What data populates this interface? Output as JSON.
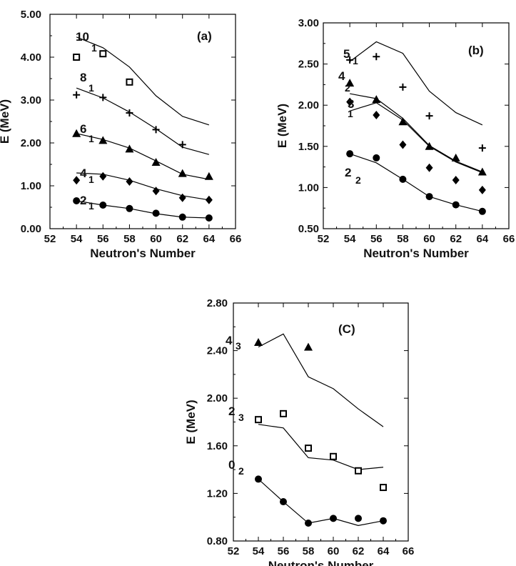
{
  "chart_data": [
    {
      "id": "a",
      "type": "scatter",
      "panel_label": "(a)",
      "xlabel": "Neutron's Number",
      "ylabel": "E (MeV)",
      "xlim": [
        52,
        66
      ],
      "ylim": [
        0,
        5
      ],
      "xticks": [
        "52",
        "54",
        "56",
        "58",
        "60",
        "62",
        "64",
        "66"
      ],
      "yticks": [
        "0.00",
        "1.00",
        "2.00",
        "3.00",
        "4.00",
        "5.00"
      ],
      "series": [
        {
          "state": "2",
          "sub": "1",
          "marker": "circle",
          "x": [
            54,
            56,
            58,
            60,
            62,
            64
          ],
          "points": [
            0.65,
            0.55,
            0.47,
            0.36,
            0.27,
            0.25
          ],
          "line": [
            0.65,
            0.55,
            0.47,
            0.35,
            0.27,
            0.25
          ]
        },
        {
          "state": "4",
          "sub": "1",
          "marker": "diamond",
          "x": [
            54,
            56,
            58,
            60,
            62,
            64
          ],
          "points": [
            1.13,
            1.22,
            1.1,
            0.88,
            0.72,
            0.67
          ],
          "line": [
            1.3,
            1.27,
            1.13,
            0.93,
            0.77,
            0.67
          ]
        },
        {
          "state": "6",
          "sub": "1",
          "marker": "triangle",
          "x": [
            54,
            56,
            58,
            60,
            62,
            64
          ],
          "points": [
            2.22,
            2.06,
            1.86,
            1.55,
            1.29,
            1.22
          ],
          "line": [
            2.22,
            2.08,
            1.88,
            1.58,
            1.27,
            1.15
          ]
        },
        {
          "state": "8",
          "sub": "1",
          "marker": "plus",
          "x": [
            54,
            56,
            58,
            60,
            62,
            64
          ],
          "points": [
            3.12,
            3.06,
            2.7,
            2.31,
            1.96,
            null
          ],
          "line": [
            3.28,
            3.05,
            2.72,
            2.33,
            1.9,
            1.73
          ]
        },
        {
          "state": "10",
          "sub": "1",
          "marker": "square",
          "x": [
            54,
            56,
            58,
            60,
            62,
            64
          ],
          "points": [
            4.0,
            4.08,
            3.42,
            null,
            null,
            null
          ],
          "line": [
            4.47,
            4.22,
            3.77,
            3.1,
            2.62,
            2.42
          ]
        }
      ]
    },
    {
      "id": "b",
      "type": "scatter",
      "panel_label": "(b)",
      "xlabel": "Neutron's Number",
      "ylabel": "E (MeV)",
      "xlim": [
        52,
        66
      ],
      "ylim": [
        0.5,
        3.0
      ],
      "xticks": [
        "52",
        "54",
        "56",
        "58",
        "60",
        "62",
        "64",
        "66"
      ],
      "yticks": [
        "0.50",
        "1.00",
        "1.50",
        "2.00",
        "2.50",
        "3.00"
      ],
      "series": [
        {
          "state": "2",
          "sub": "2",
          "marker": "circle",
          "x": [
            54,
            56,
            58,
            60,
            62,
            64
          ],
          "points": [
            1.41,
            1.36,
            1.1,
            0.89,
            0.79,
            0.71
          ],
          "line": [
            1.41,
            1.3,
            1.1,
            0.89,
            0.79,
            0.71
          ]
        },
        {
          "state": "3",
          "sub": "1",
          "marker": "diamond",
          "x": [
            54,
            56,
            58,
            60,
            62,
            64
          ],
          "points": [
            2.04,
            1.88,
            1.52,
            1.24,
            1.09,
            0.97
          ],
          "line": [
            1.93,
            2.03,
            1.82,
            1.5,
            1.31,
            1.18
          ]
        },
        {
          "state": "4",
          "sub": "2",
          "marker": "triangle",
          "x": [
            54,
            56,
            58,
            60,
            62,
            64
          ],
          "points": [
            2.27,
            2.07,
            1.8,
            1.5,
            1.36,
            1.19
          ],
          "line": [
            2.14,
            2.08,
            1.84,
            1.51,
            1.32,
            1.19
          ]
        },
        {
          "state": "5",
          "sub": "1",
          "marker": "plus",
          "x": [
            54,
            56,
            58,
            60,
            62,
            64
          ],
          "points": [
            2.55,
            2.59,
            2.22,
            1.87,
            null,
            1.48
          ],
          "line": [
            2.53,
            2.77,
            2.63,
            2.17,
            1.91,
            1.76
          ]
        }
      ]
    },
    {
      "id": "c",
      "type": "scatter",
      "panel_label": "(C)",
      "xlabel": "Neutron's Number",
      "ylabel": "E (MeV)",
      "xlim": [
        52,
        66
      ],
      "ylim": [
        0.8,
        2.8
      ],
      "xticks": [
        "52",
        "54",
        "56",
        "58",
        "60",
        "62",
        "64",
        "66"
      ],
      "yticks": [
        "0.80",
        "1.20",
        "1.60",
        "2.00",
        "2.40",
        "2.80"
      ],
      "series": [
        {
          "state": "0",
          "sub": "2",
          "marker": "circle",
          "x": [
            54,
            56,
            58,
            60,
            62,
            64
          ],
          "points": [
            1.32,
            1.13,
            0.95,
            0.99,
            0.99,
            0.97
          ],
          "line": [
            1.32,
            1.13,
            0.95,
            0.99,
            0.93,
            0.97
          ]
        },
        {
          "state": "2",
          "sub": "3",
          "marker": "square",
          "x": [
            54,
            56,
            58,
            60,
            62,
            64
          ],
          "points": [
            1.82,
            1.87,
            1.58,
            1.51,
            1.39,
            1.25
          ],
          "line": [
            1.78,
            1.75,
            1.5,
            1.48,
            1.4,
            1.42
          ]
        },
        {
          "state": "4",
          "sub": "3",
          "marker": "triangle",
          "x": [
            54,
            56,
            58,
            60,
            62,
            64
          ],
          "points": [
            2.47,
            null,
            2.43,
            null,
            null,
            null
          ],
          "line": [
            2.43,
            2.54,
            2.18,
            2.08,
            1.91,
            1.76
          ]
        }
      ]
    }
  ]
}
